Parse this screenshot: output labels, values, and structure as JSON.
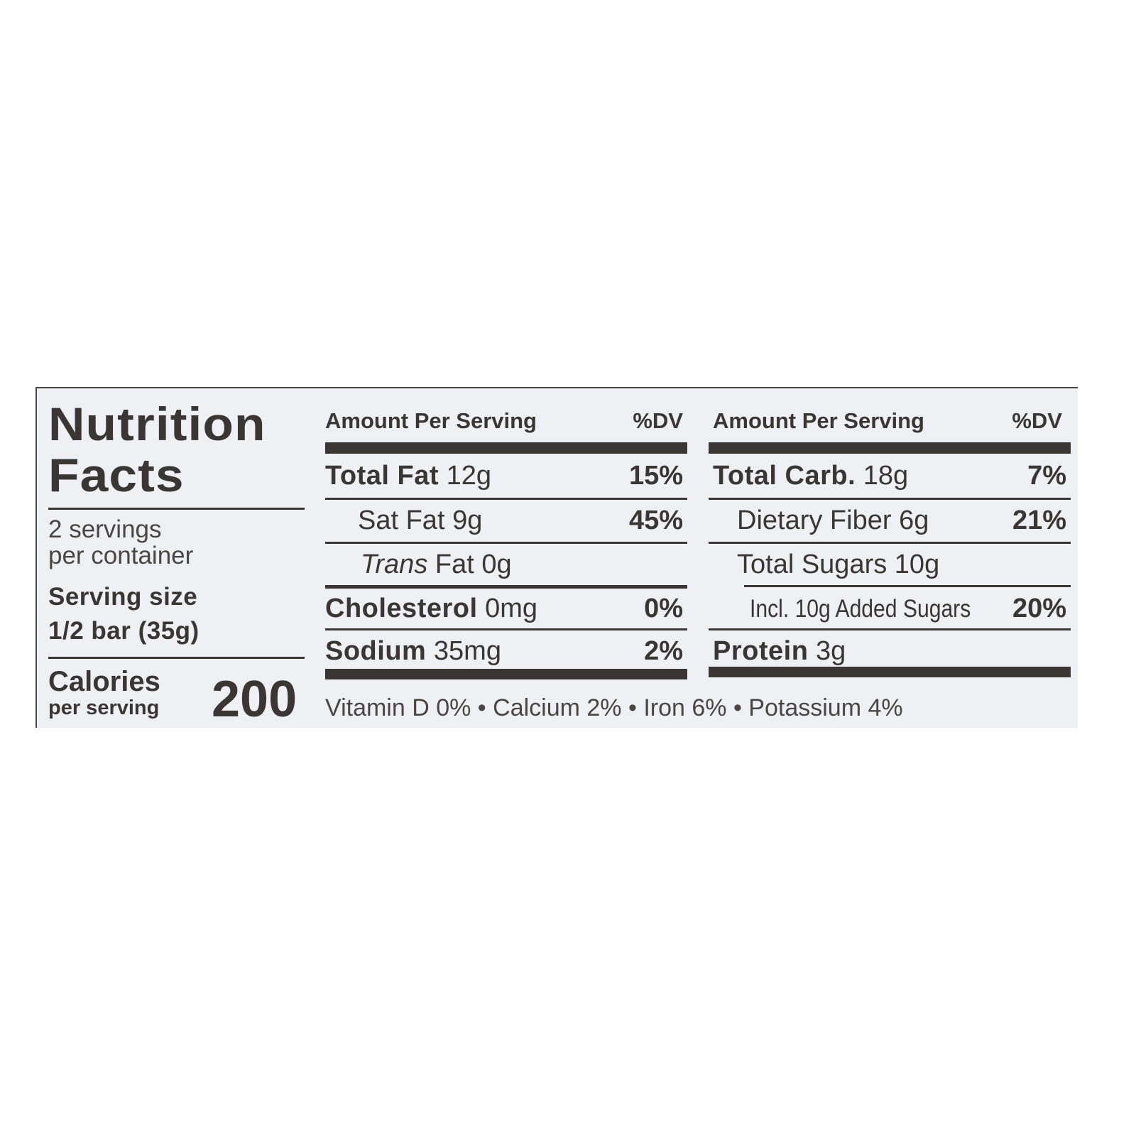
{
  "title_line1": "Nutrition",
  "title_line2": "Facts",
  "servings_line1": "2 servings",
  "servings_line2": "per container",
  "serving_size_label": "Serving size",
  "serving_size_value": "1/2 bar (35g)",
  "calories_label": "Calories",
  "calories_sub": "per serving",
  "calories_value": "200",
  "left_table": {
    "header_amount": "Amount Per Serving",
    "header_dv": "%DV",
    "rows": [
      {
        "name": "Total Fat",
        "amount": "12g",
        "dv": "15%",
        "bold": true
      },
      {
        "name": "Sat Fat",
        "amount": "9g",
        "dv": "45%",
        "bold": false
      },
      {
        "name": "Trans",
        "name_rest": "Fat",
        "amount": "0g",
        "dv": "",
        "bold": false
      },
      {
        "name": "Cholesterol",
        "amount": "0mg",
        "dv": "0%",
        "bold": true
      },
      {
        "name": "Sodium",
        "amount": "35mg",
        "dv": "2%",
        "bold": true
      }
    ]
  },
  "right_table": {
    "header_amount": "Amount Per Serving",
    "header_dv": "%DV",
    "rows": [
      {
        "name": "Total Carb.",
        "amount": "18g",
        "dv": "7%",
        "bold": true
      },
      {
        "name": "Dietary Fiber",
        "amount": "6g",
        "dv": "21%",
        "bold": false
      },
      {
        "name": "Total Sugars",
        "amount": "10g",
        "dv": "",
        "bold": false
      },
      {
        "name": "Incl. 10g Added Sugars",
        "amount": "",
        "dv": "20%",
        "bold": false
      },
      {
        "name": "Protein",
        "amount": "3g",
        "dv": "",
        "bold": true
      }
    ]
  },
  "footer": "Vitamin D 0% • Calcium 2% • Iron 6% • Potassium 4%",
  "colors": {
    "panel": "#eef0f4",
    "ink": "#3a3633"
  }
}
